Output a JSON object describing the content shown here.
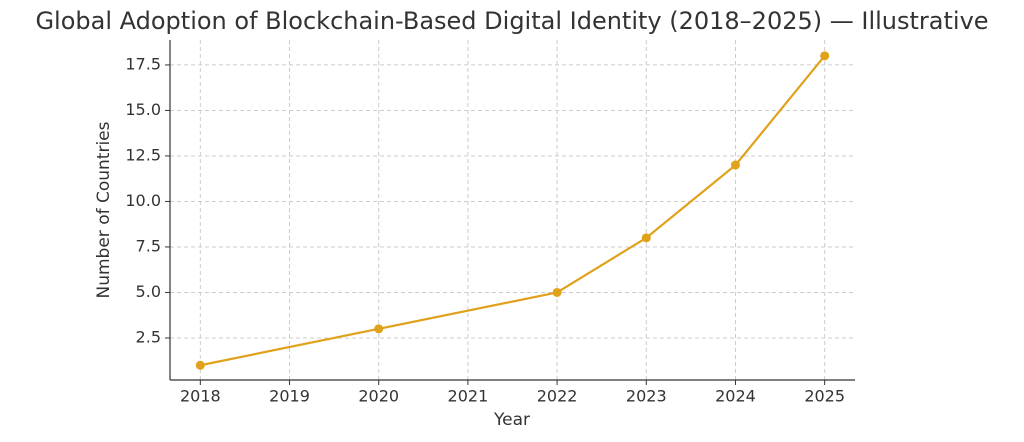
{
  "chart_data": {
    "type": "line",
    "title": "Global Adoption of Blockchain-Based Digital Identity (2018–2025) — Illustrative",
    "x_label": "Year",
    "y_label": "Number of Countries",
    "series": [
      {
        "name": "Countries",
        "color": "#e0a11b",
        "x": [
          2018,
          2020,
          2022,
          2023,
          2024,
          2025
        ],
        "values": [
          1,
          3,
          5,
          8,
          12,
          18
        ]
      }
    ],
    "xlim": [
      2017.66,
      2025.34
    ],
    "xticks": [
      2018,
      2019,
      2020,
      2021,
      2022,
      2023,
      2024,
      2025
    ],
    "ylim": [
      0.19,
      18.87
    ],
    "yticks": [
      2.5,
      {
        "value": 5,
        "label": "5.0"
      },
      7.5,
      {
        "value": 10,
        "label": "10.0"
      },
      12.5,
      {
        "value": 15,
        "label": "15.0"
      },
      17.5
    ],
    "grid": true
  }
}
